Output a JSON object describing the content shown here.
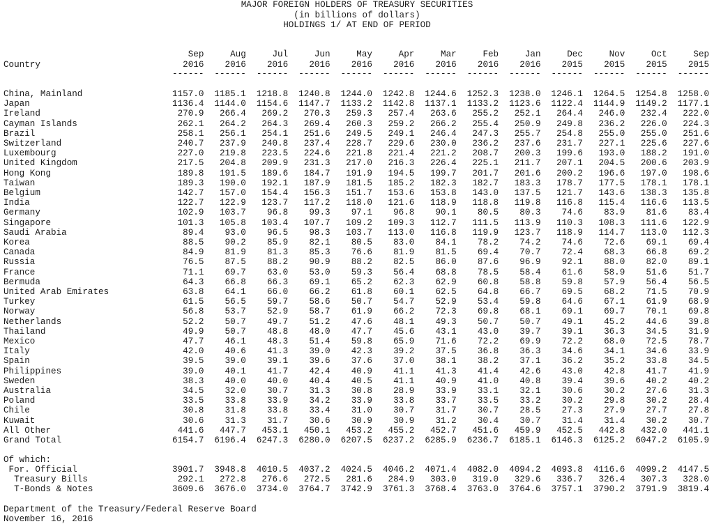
{
  "title": {
    "line1": "MAJOR FOREIGN HOLDERS OF TREASURY SECURITIES",
    "line2": "(in billions of dollars)",
    "line3": "HOLDINGS 1/ AT END OF PERIOD"
  },
  "header": {
    "country_label": "Country",
    "dash": "------",
    "columns": [
      {
        "month": "Sep",
        "year": "2016"
      },
      {
        "month": "Aug",
        "year": "2016"
      },
      {
        "month": "Jul",
        "year": "2016"
      },
      {
        "month": "Jun",
        "year": "2016"
      },
      {
        "month": "May",
        "year": "2016"
      },
      {
        "month": "Apr",
        "year": "2016"
      },
      {
        "month": "Mar",
        "year": "2016"
      },
      {
        "month": "Feb",
        "year": "2016"
      },
      {
        "month": "Jan",
        "year": "2016"
      },
      {
        "month": "Dec",
        "year": "2015"
      },
      {
        "month": "Nov",
        "year": "2015"
      },
      {
        "month": "Oct",
        "year": "2015"
      },
      {
        "month": "Sep",
        "year": "2015"
      }
    ]
  },
  "rows": [
    {
      "country": "China, Mainland",
      "values": [
        "1157.0",
        "1185.1",
        "1218.8",
        "1240.8",
        "1244.0",
        "1242.8",
        "1244.6",
        "1252.3",
        "1238.0",
        "1246.1",
        "1264.5",
        "1254.8",
        "1258.0"
      ]
    },
    {
      "country": "Japan",
      "values": [
        "1136.4",
        "1144.0",
        "1154.6",
        "1147.7",
        "1133.2",
        "1142.8",
        "1137.1",
        "1133.2",
        "1123.6",
        "1122.4",
        "1144.9",
        "1149.2",
        "1177.1"
      ]
    },
    {
      "country": "Ireland",
      "values": [
        "270.9",
        "266.4",
        "269.2",
        "270.3",
        "259.3",
        "257.4",
        "263.6",
        "255.2",
        "252.1",
        "264.4",
        "246.0",
        "232.4",
        "222.0"
      ]
    },
    {
      "country": "Cayman Islands",
      "values": [
        "262.1",
        "264.2",
        "264.3",
        "269.4",
        "260.3",
        "259.2",
        "266.2",
        "255.4",
        "250.9",
        "249.8",
        "236.2",
        "226.0",
        "224.3"
      ]
    },
    {
      "country": "Brazil",
      "values": [
        "258.1",
        "256.1",
        "254.1",
        "251.6",
        "249.5",
        "249.1",
        "246.4",
        "247.3",
        "255.7",
        "254.8",
        "255.0",
        "255.0",
        "251.6"
      ]
    },
    {
      "country": "Switzerland",
      "values": [
        "240.7",
        "237.9",
        "240.8",
        "237.4",
        "228.7",
        "229.6",
        "230.0",
        "236.2",
        "237.6",
        "231.7",
        "227.1",
        "225.6",
        "227.6"
      ]
    },
    {
      "country": "Luxembourg",
      "values": [
        "227.0",
        "219.8",
        "223.5",
        "224.6",
        "221.8",
        "221.4",
        "221.2",
        "208.7",
        "200.3",
        "199.6",
        "193.0",
        "188.2",
        "191.0"
      ]
    },
    {
      "country": "United Kingdom",
      "values": [
        "217.5",
        "204.8",
        "209.9",
        "231.3",
        "217.0",
        "216.3",
        "226.4",
        "225.1",
        "211.7",
        "207.1",
        "204.5",
        "200.6",
        "203.9"
      ]
    },
    {
      "country": "Hong Kong",
      "values": [
        "189.8",
        "191.5",
        "189.6",
        "184.7",
        "191.9",
        "194.5",
        "199.7",
        "201.7",
        "201.6",
        "200.2",
        "196.6",
        "197.0",
        "198.6"
      ]
    },
    {
      "country": "Taiwan",
      "values": [
        "189.3",
        "190.0",
        "192.1",
        "187.9",
        "181.5",
        "185.2",
        "182.3",
        "182.7",
        "183.3",
        "178.7",
        "177.5",
        "178.1",
        "178.1"
      ]
    },
    {
      "country": "Belgium",
      "values": [
        "142.7",
        "157.0",
        "154.4",
        "156.3",
        "151.7",
        "153.6",
        "153.8",
        "143.0",
        "137.5",
        "121.7",
        "143.6",
        "138.3",
        "135.8"
      ]
    },
    {
      "country": "India",
      "values": [
        "122.7",
        "122.9",
        "123.7",
        "117.2",
        "118.0",
        "121.6",
        "118.9",
        "118.8",
        "119.8",
        "116.8",
        "115.4",
        "116.6",
        "113.5"
      ]
    },
    {
      "country": "Germany",
      "values": [
        "102.9",
        "103.7",
        "96.8",
        "99.3",
        "97.1",
        "96.8",
        "90.1",
        "80.5",
        "80.3",
        "74.6",
        "83.9",
        "81.6",
        "83.4"
      ]
    },
    {
      "country": "Singapore",
      "values": [
        "101.3",
        "105.8",
        "103.4",
        "107.7",
        "109.2",
        "109.3",
        "112.7",
        "111.5",
        "113.9",
        "110.3",
        "108.3",
        "111.6",
        "122.9"
      ]
    },
    {
      "country": "Saudi Arabia",
      "values": [
        "89.4",
        "93.0",
        "96.5",
        "98.3",
        "103.7",
        "113.0",
        "116.8",
        "119.9",
        "123.7",
        "118.9",
        "114.7",
        "113.0",
        "112.3"
      ]
    },
    {
      "country": "Korea",
      "values": [
        "88.5",
        "90.2",
        "85.9",
        "82.1",
        "80.5",
        "83.0",
        "84.1",
        "78.2",
        "74.2",
        "74.6",
        "72.6",
        "69.1",
        "69.4"
      ]
    },
    {
      "country": "Canada",
      "values": [
        "84.9",
        "81.9",
        "81.3",
        "85.3",
        "76.6",
        "81.9",
        "81.5",
        "69.4",
        "70.7",
        "72.4",
        "68.3",
        "66.8",
        "69.2"
      ]
    },
    {
      "country": "Russia",
      "values": [
        "76.5",
        "87.5",
        "88.2",
        "90.9",
        "88.2",
        "82.5",
        "86.0",
        "87.6",
        "96.9",
        "92.1",
        "88.0",
        "82.0",
        "89.1"
      ]
    },
    {
      "country": "France",
      "values": [
        "71.1",
        "69.7",
        "63.0",
        "53.0",
        "59.3",
        "56.4",
        "68.8",
        "78.5",
        "58.4",
        "61.6",
        "58.9",
        "51.6",
        "51.7"
      ]
    },
    {
      "country": "Bermuda",
      "values": [
        "64.3",
        "66.8",
        "66.3",
        "69.1",
        "65.2",
        "62.3",
        "62.9",
        "60.8",
        "58.8",
        "59.8",
        "57.9",
        "56.4",
        "56.5"
      ]
    },
    {
      "country": "United Arab Emirates",
      "values": [
        "63.8",
        "64.1",
        "66.0",
        "66.2",
        "61.8",
        "60.1",
        "62.5",
        "64.8",
        "66.7",
        "69.5",
        "68.2",
        "71.5",
        "70.9"
      ]
    },
    {
      "country": "Turkey",
      "values": [
        "61.5",
        "56.5",
        "59.7",
        "58.6",
        "50.7",
        "54.7",
        "52.9",
        "53.4",
        "59.8",
        "64.6",
        "67.1",
        "61.9",
        "68.9"
      ]
    },
    {
      "country": "Norway",
      "values": [
        "56.8",
        "53.7",
        "52.9",
        "58.7",
        "61.9",
        "66.2",
        "72.3",
        "69.8",
        "68.1",
        "69.1",
        "69.7",
        "70.1",
        "69.8"
      ]
    },
    {
      "country": "Netherlands",
      "values": [
        "52.2",
        "50.7",
        "49.7",
        "51.2",
        "47.6",
        "48.1",
        "49.3",
        "50.7",
        "50.7",
        "49.1",
        "45.2",
        "44.6",
        "39.8"
      ]
    },
    {
      "country": "Thailand",
      "values": [
        "49.9",
        "50.7",
        "48.8",
        "48.0",
        "47.7",
        "45.6",
        "43.1",
        "43.0",
        "39.7",
        "39.1",
        "36.3",
        "34.5",
        "31.9"
      ]
    },
    {
      "country": "Mexico",
      "values": [
        "47.7",
        "46.1",
        "48.3",
        "51.4",
        "59.8",
        "65.9",
        "71.6",
        "72.2",
        "69.9",
        "72.2",
        "68.0",
        "72.5",
        "78.7"
      ]
    },
    {
      "country": "Italy",
      "values": [
        "42.0",
        "40.6",
        "41.3",
        "39.0",
        "42.3",
        "39.2",
        "37.5",
        "36.8",
        "36.3",
        "34.6",
        "34.1",
        "34.6",
        "33.9"
      ]
    },
    {
      "country": "Spain",
      "values": [
        "39.5",
        "39.0",
        "39.1",
        "39.6",
        "37.6",
        "37.0",
        "38.1",
        "38.2",
        "37.1",
        "36.2",
        "35.2",
        "33.8",
        "34.5"
      ]
    },
    {
      "country": "Philippines",
      "values": [
        "39.0",
        "40.1",
        "41.7",
        "42.4",
        "40.9",
        "41.1",
        "41.3",
        "41.4",
        "42.6",
        "43.0",
        "42.8",
        "41.7",
        "41.9"
      ]
    },
    {
      "country": "Sweden",
      "values": [
        "38.3",
        "40.0",
        "40.0",
        "40.4",
        "40.5",
        "41.1",
        "40.9",
        "41.0",
        "40.8",
        "39.4",
        "39.6",
        "40.2",
        "40.2"
      ]
    },
    {
      "country": "Australia",
      "values": [
        "34.5",
        "32.0",
        "30.7",
        "31.3",
        "30.8",
        "28.9",
        "33.9",
        "33.1",
        "32.1",
        "30.6",
        "30.2",
        "27.6",
        "31.3"
      ]
    },
    {
      "country": "Poland",
      "values": [
        "33.5",
        "33.8",
        "33.9",
        "34.2",
        "33.9",
        "33.8",
        "33.7",
        "33.5",
        "33.2",
        "30.2",
        "29.8",
        "30.2",
        "28.4"
      ]
    },
    {
      "country": "Chile",
      "values": [
        "30.8",
        "31.8",
        "33.8",
        "33.4",
        "31.0",
        "30.7",
        "31.7",
        "30.7",
        "28.5",
        "27.3",
        "27.9",
        "27.7",
        "27.8"
      ]
    },
    {
      "country": "Kuwait",
      "values": [
        "30.6",
        "31.3",
        "31.7",
        "30.6",
        "30.9",
        "30.9",
        "31.2",
        "30.4",
        "30.7",
        "31.4",
        "31.4",
        "30.2",
        "30.7"
      ]
    },
    {
      "country": "All Other",
      "values": [
        "441.6",
        "447.7",
        "453.1",
        "450.1",
        "453.2",
        "455.2",
        "452.7",
        "451.6",
        "459.9",
        "452.5",
        "442.8",
        "432.0",
        "441.1"
      ]
    },
    {
      "country": "Grand Total",
      "values": [
        "6154.7",
        "6196.4",
        "6247.3",
        "6280.0",
        "6207.5",
        "6237.2",
        "6285.9",
        "6236.7",
        "6185.1",
        "6146.3",
        "6125.2",
        "6047.2",
        "6105.9"
      ]
    }
  ],
  "of_which": {
    "label": "Of which:",
    "rows": [
      {
        "country": " For. Official",
        "values": [
          "3901.7",
          "3948.8",
          "4010.5",
          "4037.2",
          "4024.5",
          "4046.2",
          "4071.4",
          "4082.0",
          "4094.2",
          "4093.8",
          "4116.6",
          "4099.2",
          "4147.5"
        ]
      },
      {
        "country": "  Treasury Bills",
        "values": [
          "292.1",
          "272.8",
          "276.6",
          "272.5",
          "281.6",
          "284.9",
          "303.0",
          "319.0",
          "329.6",
          "336.7",
          "326.4",
          "307.3",
          "328.0"
        ]
      },
      {
        "country": "  T-Bonds & Notes",
        "values": [
          "3609.6",
          "3676.0",
          "3734.0",
          "3764.7",
          "3742.9",
          "3761.3",
          "3768.4",
          "3763.0",
          "3764.6",
          "3757.1",
          "3790.2",
          "3791.9",
          "3819.4"
        ]
      }
    ]
  },
  "footer": {
    "source": "Department of the Treasury/Federal Reserve Board",
    "date": "November 16, 2016"
  }
}
